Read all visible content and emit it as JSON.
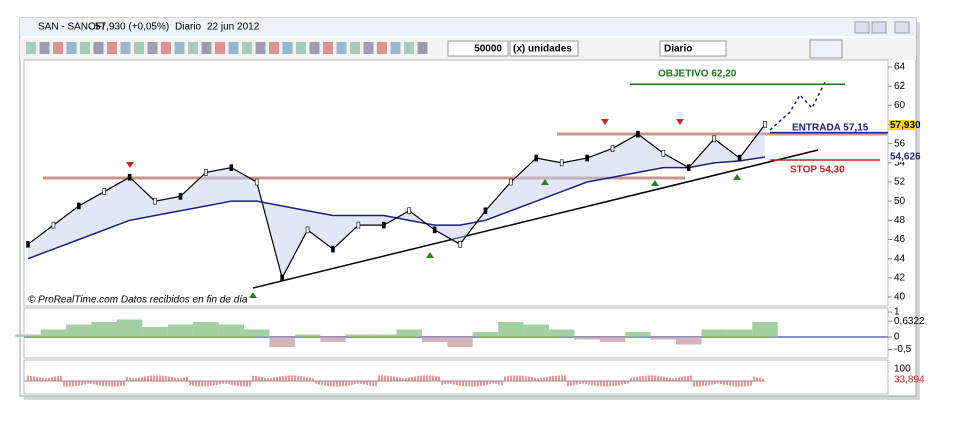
{
  "window": {
    "title": "SAN - SANOFI",
    "quote": "57,930 (+0,05%)",
    "period": "Diario",
    "date": "22 jun 2012"
  },
  "toolbar": {
    "quantity": "50000",
    "unit": "(x) unidades",
    "timeframe": "Diario"
  },
  "price": {
    "close": [
      45.5,
      47.5,
      49.5,
      51,
      52.5,
      50,
      50.5,
      53,
      53.5,
      52,
      42,
      47,
      45,
      47.5,
      47.5,
      49,
      47,
      45.5,
      49,
      52,
      54.5,
      54,
      54.5,
      55.5,
      57,
      55,
      53.5,
      56.5,
      54.5,
      58
    ],
    "moving_average": [
      44,
      45,
      46,
      47,
      48,
      48.5,
      49,
      49.5,
      50,
      50,
      49.5,
      49,
      48.5,
      48.5,
      48.5,
      48,
      47.5,
      47.5,
      48,
      49,
      50,
      51,
      52,
      52.5,
      53,
      53.5,
      53.5,
      54,
      54.2,
      54.6
    ],
    "ylim": [
      40,
      64
    ],
    "yticks": [
      64,
      62,
      60,
      58,
      56,
      54,
      52,
      50,
      48,
      46,
      44,
      42,
      40
    ],
    "last_price": {
      "value": 57.93,
      "label": "57,930"
    },
    "average_price": {
      "value": 54.626,
      "label": "54,626"
    },
    "levels": [
      {
        "label": "OBJETIVO 62,20",
        "value": 62.2,
        "color": "#1a7a1a"
      },
      {
        "label": "ENTRADA 57,15",
        "value": 57.15,
        "color": "#1a237e"
      },
      {
        "label": "STOP 54,30",
        "value": 54.3,
        "color": "#c62828"
      }
    ],
    "credit": "© ProRealTime.com  Datos recibidos en fin de día"
  },
  "oscillator": {
    "values": [
      0.1,
      0.3,
      0.5,
      0.6,
      0.7,
      0.4,
      0.5,
      0.6,
      0.5,
      0.3,
      -0.4,
      0.1,
      -0.2,
      0.1,
      0.1,
      0.3,
      -0.2,
      -0.4,
      0.2,
      0.6,
      0.5,
      0.3,
      -0.1,
      -0.2,
      0.2,
      -0.1,
      -0.3,
      0.3,
      0.3,
      0.6
    ],
    "ylim": [
      -0.6,
      1
    ],
    "yticks": [
      1,
      {
        "value": 0.6322,
        "label": "0,6322"
      },
      0,
      {
        "value": -0.5,
        "label": "-0,5"
      }
    ]
  },
  "lower_panel": {
    "yticks": [
      100,
      {
        "value": 33.894,
        "label": "33,894"
      }
    ]
  }
}
